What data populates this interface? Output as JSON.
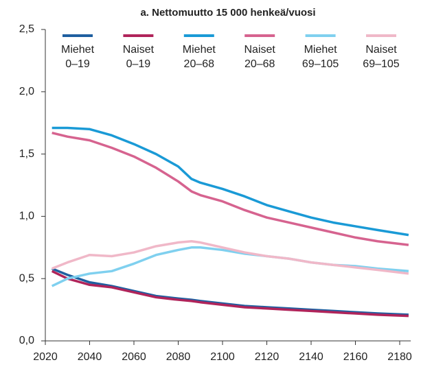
{
  "chart_data": {
    "type": "line",
    "title": "a. Nettomuutto 15 000 henkeä/vuosi",
    "x": [
      2023,
      2030,
      2040,
      2050,
      2060,
      2070,
      2080,
      2086,
      2090,
      2100,
      2110,
      2120,
      2130,
      2140,
      2150,
      2160,
      2170,
      2184
    ],
    "series": [
      {
        "name": "Miehet\n0–19",
        "color": "#1f5fa0",
        "values": [
          0.58,
          0.53,
          0.47,
          0.44,
          0.4,
          0.36,
          0.34,
          0.33,
          0.32,
          0.3,
          0.28,
          0.27,
          0.26,
          0.25,
          0.24,
          0.23,
          0.22,
          0.21
        ]
      },
      {
        "name": "Naiset\n0–19",
        "color": "#b0245a",
        "values": [
          0.56,
          0.5,
          0.45,
          0.43,
          0.39,
          0.35,
          0.33,
          0.32,
          0.31,
          0.29,
          0.27,
          0.26,
          0.25,
          0.24,
          0.23,
          0.22,
          0.21,
          0.2
        ]
      },
      {
        "name": "Miehet\n20–68",
        "color": "#1a9ad6",
        "values": [
          1.71,
          1.71,
          1.7,
          1.65,
          1.58,
          1.5,
          1.4,
          1.3,
          1.27,
          1.22,
          1.16,
          1.09,
          1.04,
          0.99,
          0.95,
          0.92,
          0.89,
          0.85
        ]
      },
      {
        "name": "Naiset\n20–68",
        "color": "#d6638f",
        "values": [
          1.67,
          1.64,
          1.61,
          1.55,
          1.48,
          1.39,
          1.28,
          1.2,
          1.17,
          1.12,
          1.05,
          0.99,
          0.95,
          0.91,
          0.87,
          0.83,
          0.8,
          0.77
        ]
      },
      {
        "name": "Miehet\n69–105",
        "color": "#7fd0ef",
        "values": [
          0.44,
          0.5,
          0.54,
          0.56,
          0.62,
          0.69,
          0.73,
          0.75,
          0.75,
          0.73,
          0.7,
          0.68,
          0.66,
          0.63,
          0.61,
          0.6,
          0.58,
          0.56
        ]
      },
      {
        "name": "Naiset\n69–105",
        "color": "#f0b8c8",
        "values": [
          0.58,
          0.63,
          0.69,
          0.68,
          0.71,
          0.76,
          0.79,
          0.8,
          0.79,
          0.75,
          0.71,
          0.68,
          0.66,
          0.63,
          0.61,
          0.59,
          0.57,
          0.54
        ]
      }
    ],
    "xlim": [
      2020,
      2185
    ],
    "xticks": [
      2020,
      2040,
      2060,
      2080,
      2100,
      2120,
      2140,
      2160,
      2180
    ],
    "ylim": [
      0,
      2.5
    ],
    "yticks": [
      {
        "value": 0,
        "label": "0,0"
      },
      {
        "value": 0.5,
        "label": "0,5"
      },
      {
        "value": 1,
        "label": "1,0"
      },
      {
        "value": 1.5,
        "label": "1,5"
      },
      {
        "value": 2,
        "label": "2,0"
      },
      {
        "value": 2.5,
        "label": "2,5"
      }
    ],
    "grid": false
  }
}
